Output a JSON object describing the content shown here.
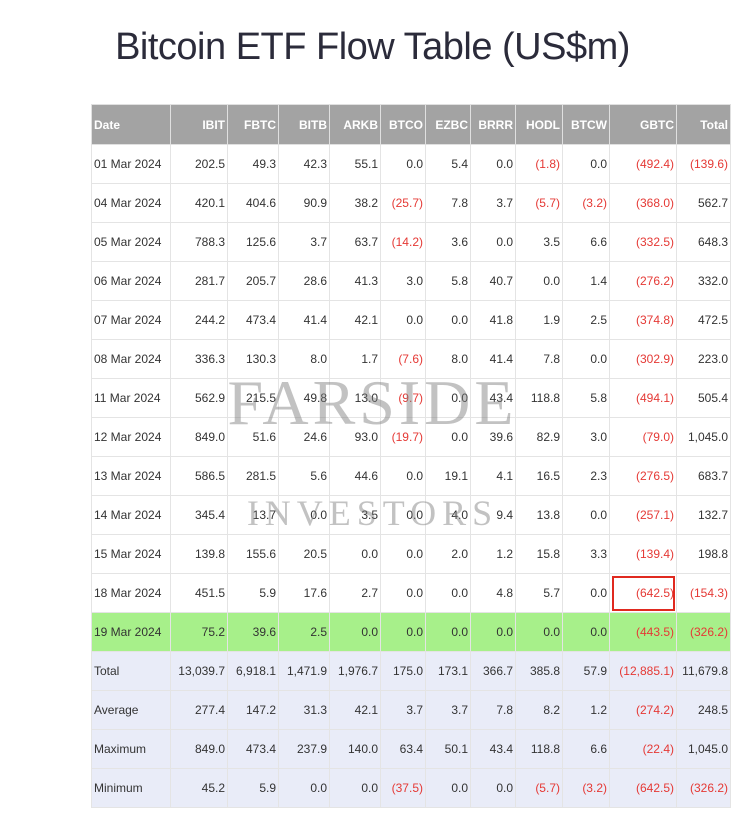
{
  "header": {
    "title": "Bitcoin ETF Flow Table (US$m)"
  },
  "watermark": [
    "FARSIDE",
    "INVESTORS"
  ],
  "table": {
    "columns": [
      "Date",
      "IBIT",
      "FBTC",
      "BITB",
      "ARKB",
      "BTCO",
      "EZBC",
      "BRRR",
      "HODL",
      "BTCW",
      "GBTC",
      "Total"
    ],
    "rows": [
      [
        "01 Mar 2024",
        "202.5",
        "49.3",
        "42.3",
        "55.1",
        "0.0",
        "5.4",
        "0.0",
        "(1.8)",
        "0.0",
        "(492.4)",
        "(139.6)"
      ],
      [
        "04 Mar 2024",
        "420.1",
        "404.6",
        "90.9",
        "38.2",
        "(25.7)",
        "7.8",
        "3.7",
        "(5.7)",
        "(3.2)",
        "(368.0)",
        "562.7"
      ],
      [
        "05 Mar 2024",
        "788.3",
        "125.6",
        "3.7",
        "63.7",
        "(14.2)",
        "3.6",
        "0.0",
        "3.5",
        "6.6",
        "(332.5)",
        "648.3"
      ],
      [
        "06 Mar 2024",
        "281.7",
        "205.7",
        "28.6",
        "41.3",
        "3.0",
        "5.8",
        "40.7",
        "0.0",
        "1.4",
        "(276.2)",
        "332.0"
      ],
      [
        "07 Mar 2024",
        "244.2",
        "473.4",
        "41.4",
        "42.1",
        "0.0",
        "0.0",
        "41.8",
        "1.9",
        "2.5",
        "(374.8)",
        "472.5"
      ],
      [
        "08 Mar 2024",
        "336.3",
        "130.3",
        "8.0",
        "1.7",
        "(7.6)",
        "8.0",
        "41.4",
        "7.8",
        "0.0",
        "(302.9)",
        "223.0"
      ],
      [
        "11 Mar 2024",
        "562.9",
        "215.5",
        "49.8",
        "13.0",
        "(9.7)",
        "0.0",
        "43.4",
        "118.8",
        "5.8",
        "(494.1)",
        "505.4"
      ],
      [
        "12 Mar 2024",
        "849.0",
        "51.6",
        "24.6",
        "93.0",
        "(19.7)",
        "0.0",
        "39.6",
        "82.9",
        "3.0",
        "(79.0)",
        "1,045.0"
      ],
      [
        "13 Mar 2024",
        "586.5",
        "281.5",
        "5.6",
        "44.6",
        "0.0",
        "19.1",
        "4.1",
        "16.5",
        "2.3",
        "(276.5)",
        "683.7"
      ],
      [
        "14 Mar 2024",
        "345.4",
        "13.7",
        "0.0",
        "3.5",
        "0.0",
        "4.0",
        "9.4",
        "13.8",
        "0.0",
        "(257.1)",
        "132.7"
      ],
      [
        "15 Mar 2024",
        "139.8",
        "155.6",
        "20.5",
        "0.0",
        "0.0",
        "2.0",
        "1.2",
        "15.8",
        "3.3",
        "(139.4)",
        "198.8"
      ],
      [
        "18 Mar 2024",
        "451.5",
        "5.9",
        "17.6",
        "2.7",
        "0.0",
        "0.0",
        "4.8",
        "5.7",
        "0.0",
        "(642.5)",
        "(154.3)"
      ],
      [
        "19 Mar 2024",
        "75.2",
        "39.6",
        "2.5",
        "0.0",
        "0.0",
        "0.0",
        "0.0",
        "0.0",
        "0.0",
        "(443.5)",
        "(326.2)"
      ],
      [
        "Total",
        "13,039.7",
        "6,918.1",
        "1,471.9",
        "1,976.7",
        "175.0",
        "173.1",
        "366.7",
        "385.8",
        "57.9",
        "(12,885.1)",
        "11,679.8"
      ],
      [
        "Average",
        "277.4",
        "147.2",
        "31.3",
        "42.1",
        "3.7",
        "3.7",
        "7.8",
        "8.2",
        "1.2",
        "(274.2)",
        "248.5"
      ],
      [
        "Maximum",
        "849.0",
        "473.4",
        "237.9",
        "140.0",
        "63.4",
        "50.1",
        "43.4",
        "118.8",
        "6.6",
        "(22.4)",
        "1,045.0"
      ],
      [
        "Minimum",
        "45.2",
        "5.9",
        "0.0",
        "0.0",
        "(37.5)",
        "0.0",
        "0.0",
        "(5.7)",
        "(3.2)",
        "(642.5)",
        "(326.2)"
      ]
    ]
  }
}
